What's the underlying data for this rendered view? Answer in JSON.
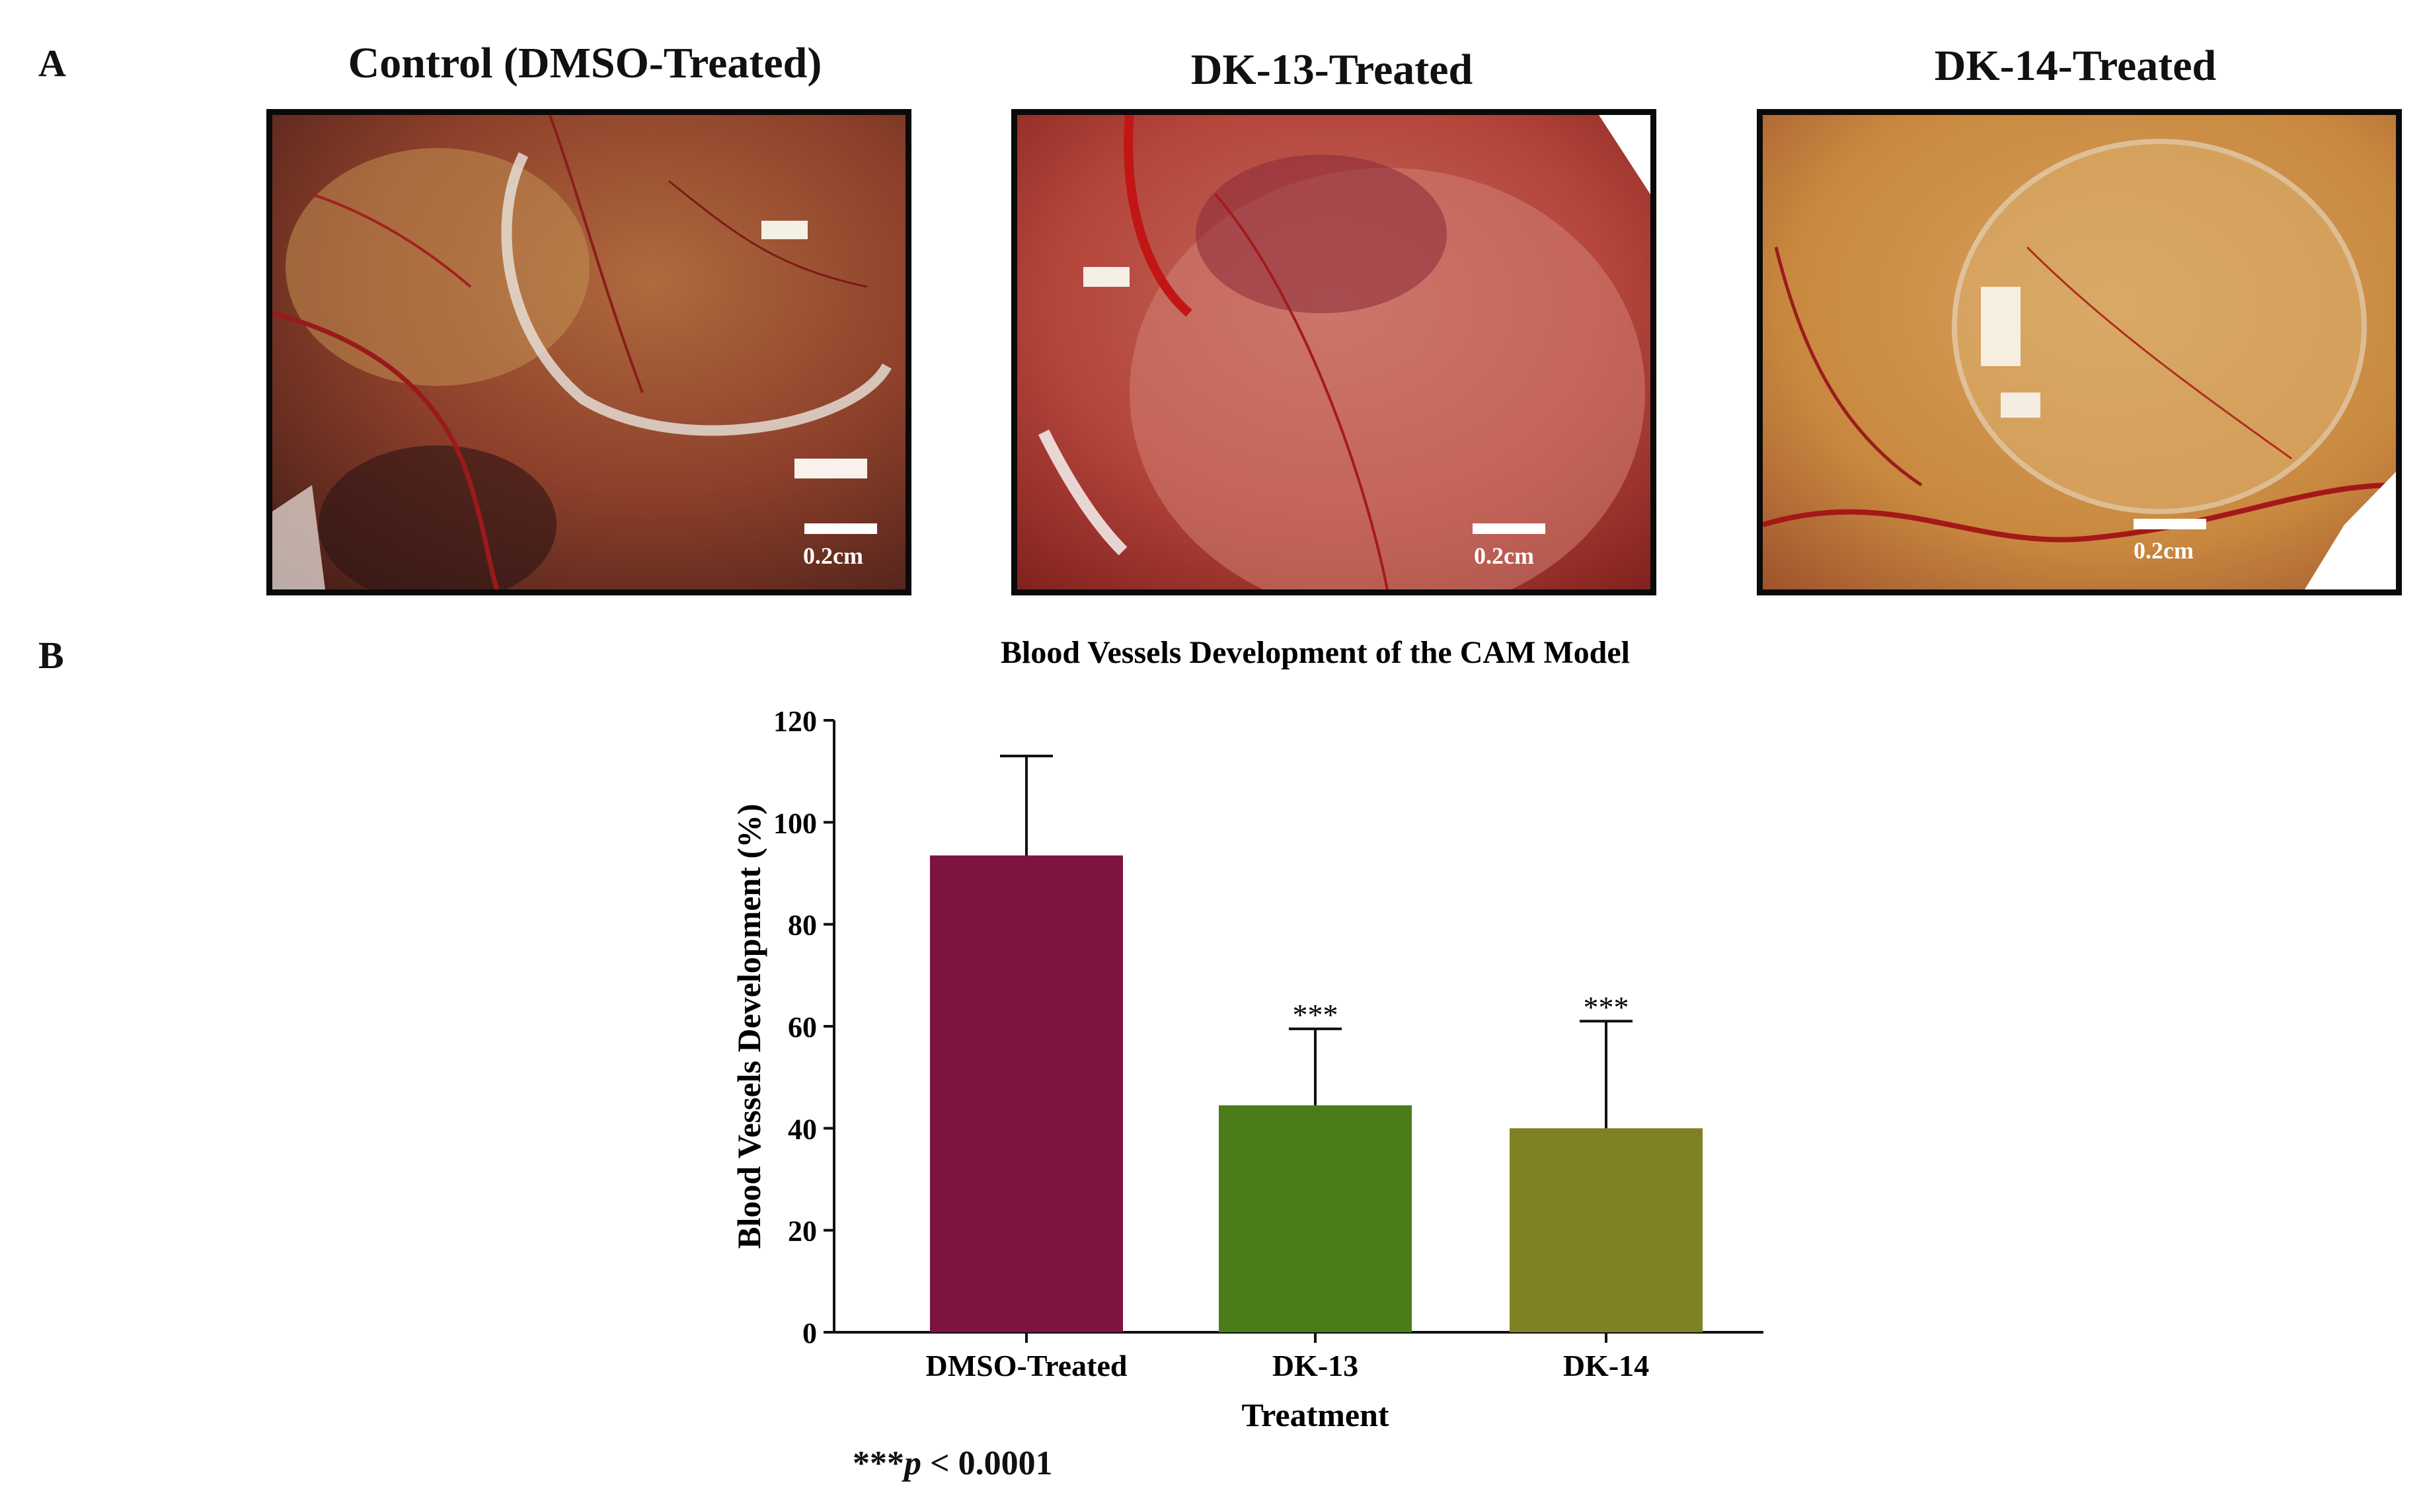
{
  "panel_a": {
    "letter": "A",
    "photos": [
      {
        "title": "Control (DMSO-Treated)",
        "scale_label": "0.2cm"
      },
      {
        "title": "DK-13-Treated",
        "scale_label": "0.2cm"
      },
      {
        "title": "DK-14-Treated",
        "scale_label": "0.2cm"
      }
    ]
  },
  "panel_b": {
    "letter": "B"
  },
  "chart_data": {
    "type": "bar",
    "title": "Blood Vessels Development of the CAM Model",
    "xlabel": "Treatment",
    "ylabel": "Blood Vessels Development (%)",
    "ylim": [
      0,
      120
    ],
    "yticks": [
      "0",
      "20",
      "40",
      "60",
      "80",
      "100",
      "120"
    ],
    "categories": [
      "DMSO-Treated",
      "DK-13",
      "DK-14"
    ],
    "values": [
      93.5,
      44.5,
      40
    ],
    "error_upper": [
      113,
      59.5,
      61
    ],
    "bar_colors": [
      "#7c1340",
      "#4a7c17",
      "#808024"
    ],
    "significance": [
      "",
      "***",
      "***"
    ]
  },
  "footnote": {
    "stars": "***",
    "p": "p",
    "rest": " < 0.0001"
  }
}
